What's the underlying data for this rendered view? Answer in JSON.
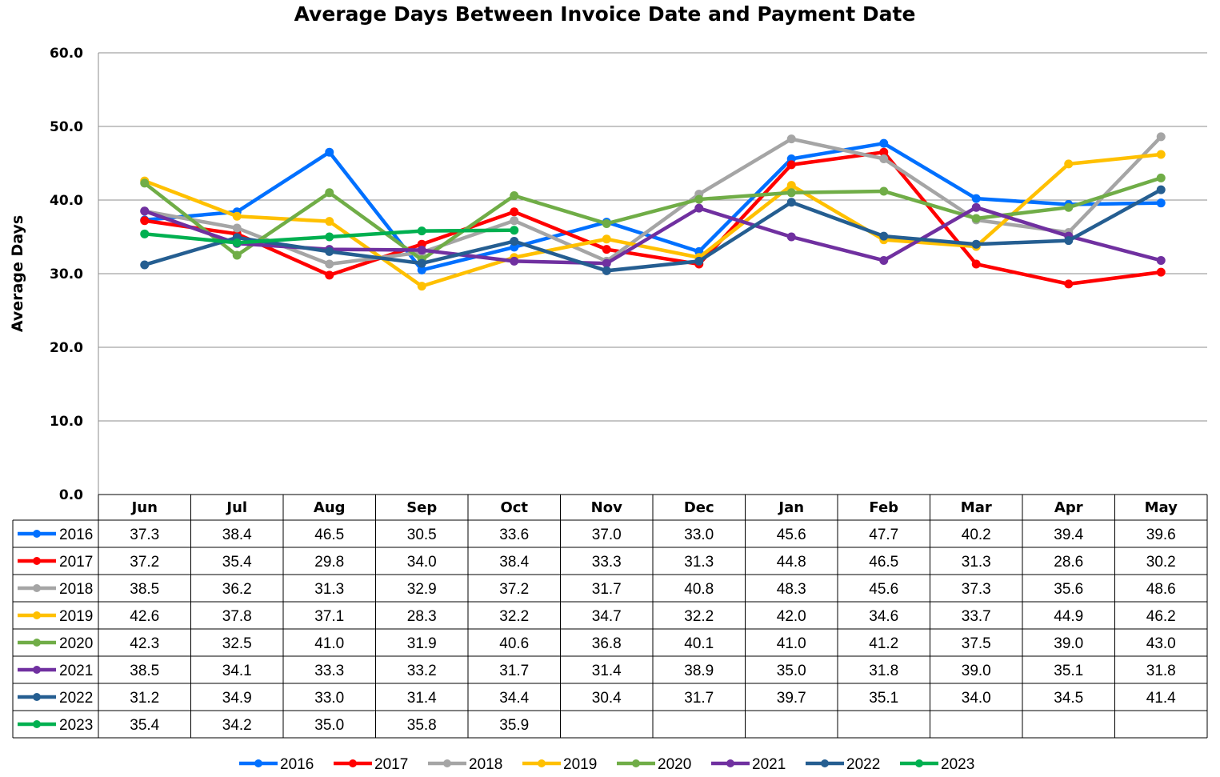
{
  "chart_data": {
    "type": "line",
    "title": "Average Days Between Invoice Date and Payment Date",
    "xlabel": "",
    "ylabel": "Average Days",
    "ylim": [
      0,
      60
    ],
    "yticks": [
      "0.0",
      "10.0",
      "20.0",
      "30.0",
      "40.0",
      "50.0",
      "60.0"
    ],
    "grid": true,
    "legend_position": "bottom",
    "categories": [
      "Jun",
      "Jul",
      "Aug",
      "Sep",
      "Oct",
      "Nov",
      "Dec",
      "Jan",
      "Feb",
      "Mar",
      "Apr",
      "May"
    ],
    "series": [
      {
        "name": "2016",
        "color": "#0070FF",
        "values": [
          37.3,
          38.4,
          46.5,
          30.5,
          33.6,
          37.0,
          33.0,
          45.6,
          47.7,
          40.2,
          39.4,
          39.6
        ]
      },
      {
        "name": "2017",
        "color": "#FF0000",
        "values": [
          37.2,
          35.4,
          29.8,
          34.0,
          38.4,
          33.3,
          31.3,
          44.8,
          46.5,
          31.3,
          28.6,
          30.2
        ]
      },
      {
        "name": "2018",
        "color": "#A5A5A5",
        "values": [
          38.5,
          36.2,
          31.3,
          32.9,
          37.2,
          31.7,
          40.8,
          48.3,
          45.6,
          37.3,
          35.6,
          48.6
        ]
      },
      {
        "name": "2019",
        "color": "#FFC000",
        "values": [
          42.6,
          37.8,
          37.1,
          28.3,
          32.2,
          34.7,
          32.2,
          42.0,
          34.6,
          33.7,
          44.9,
          46.2
        ]
      },
      {
        "name": "2020",
        "color": "#70AD47",
        "values": [
          42.3,
          32.5,
          41.0,
          31.9,
          40.6,
          36.8,
          40.1,
          41.0,
          41.2,
          37.5,
          39.0,
          43.0
        ]
      },
      {
        "name": "2021",
        "color": "#7030A0",
        "values": [
          38.5,
          34.1,
          33.3,
          33.2,
          31.7,
          31.4,
          38.9,
          35.0,
          31.8,
          39.0,
          35.1,
          31.8
        ]
      },
      {
        "name": "2022",
        "color": "#255E91",
        "values": [
          31.2,
          34.9,
          33.0,
          31.4,
          34.4,
          30.4,
          31.7,
          39.7,
          35.1,
          34.0,
          34.5,
          41.4
        ]
      },
      {
        "name": "2023",
        "color": "#00B050",
        "values": [
          35.4,
          34.2,
          35.0,
          35.8,
          35.9,
          null,
          null,
          null,
          null,
          null,
          null,
          null
        ]
      }
    ]
  }
}
